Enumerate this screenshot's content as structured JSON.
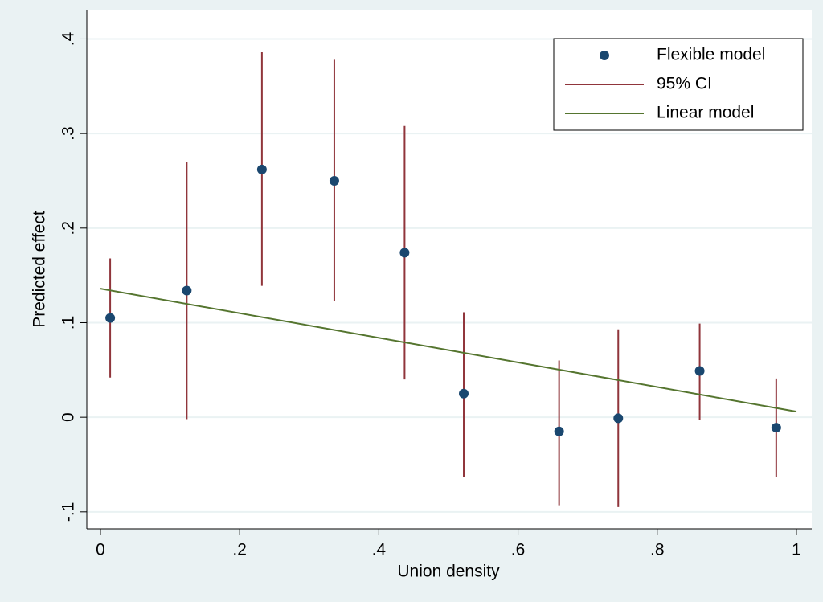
{
  "chart_data": {
    "type": "scatter",
    "x_label": "Union density",
    "y_label": "Predicted effect",
    "xlim": [
      -0.0196,
      1.022
    ],
    "ylim": [
      -0.118,
      0.431
    ],
    "xticks": [
      0,
      {
        "value": 0.2,
        "label": ".2"
      },
      {
        "value": 0.4,
        "label": ".4"
      },
      {
        "value": 0.6,
        "label": ".6"
      },
      {
        "value": 0.8,
        "label": ".8"
      },
      1
    ],
    "yticks": [
      {
        "value": -0.1,
        "label": "-.1"
      },
      0,
      {
        "value": 0.1,
        "label": ".1"
      },
      {
        "value": 0.2,
        "label": ".2"
      },
      {
        "value": 0.3,
        "label": ".3"
      },
      {
        "value": 0.4,
        "label": ".4"
      }
    ],
    "grid": true,
    "legend": "top-right",
    "series": [
      {
        "name": "Flexible model",
        "color": "#1a476f",
        "x": [
          0.014,
          0.124,
          0.232,
          0.336,
          0.437,
          0.522,
          0.659,
          0.744,
          0.861,
          0.971
        ],
        "values": [
          0.105,
          0.134,
          0.262,
          0.25,
          0.174,
          0.025,
          -0.015,
          -0.001,
          0.049,
          -0.011
        ]
      },
      {
        "name": "95% CI",
        "color": "#90353b",
        "lower": [
          0.042,
          -0.002,
          0.139,
          0.123,
          0.04,
          -0.063,
          -0.093,
          -0.095,
          -0.003,
          -0.063
        ],
        "upper": [
          0.168,
          0.27,
          0.386,
          0.378,
          0.308,
          0.111,
          0.06,
          0.093,
          0.099,
          0.041
        ]
      },
      {
        "name": "Linear model",
        "color": "#55752f",
        "x": [
          0,
          1
        ],
        "values": [
          0.136,
          0.006
        ]
      }
    ]
  }
}
